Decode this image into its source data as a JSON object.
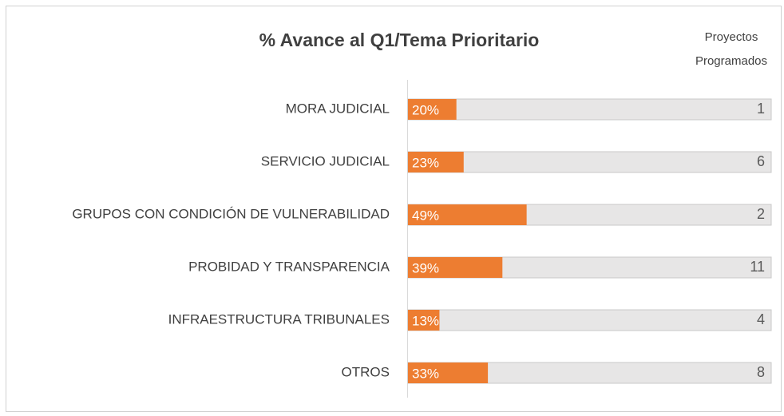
{
  "chart_data": {
    "type": "bar",
    "title": "% Avance al Q1/Tema Prioritario",
    "categories": [
      "MORA JUDICIAL",
      "SERVICIO JUDICIAL",
      "GRUPOS CON CONDICIÓN DE VULNERABILIDAD",
      "PROBIDAD Y TRANSPARENCIA",
      "INFRAESTRUCTURA TRIBUNALES",
      "OTROS"
    ],
    "values": [
      20,
      23,
      49,
      39,
      13,
      33
    ],
    "value_labels": [
      "20%",
      "23%",
      "49%",
      "39%",
      "13%",
      "33%"
    ],
    "color": "#ed7d31",
    "track_color": "#e7e6e6",
    "xlim": [
      0,
      150
    ],
    "count_header": [
      "Proyectos",
      "Programados"
    ],
    "counts": [
      1,
      6,
      2,
      11,
      4,
      8
    ]
  }
}
